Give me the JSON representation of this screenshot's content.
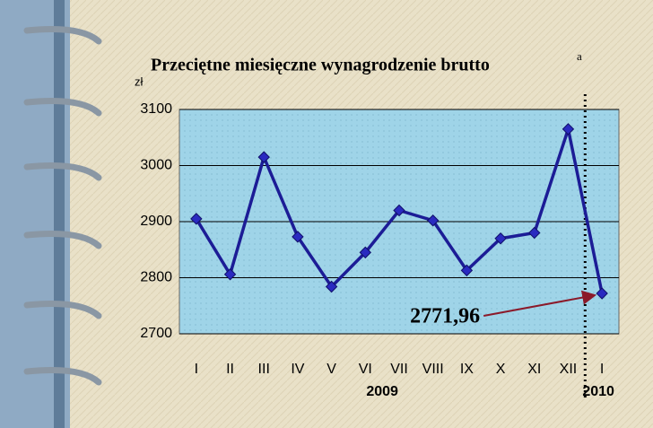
{
  "chart_data": {
    "type": "line",
    "title": "Przeciętne miesięczne wynagrodzenie brutto",
    "title_superscript": "a",
    "y_unit": "zł",
    "categories": [
      "I",
      "II",
      "III",
      "IV",
      "V",
      "VI",
      "VII",
      "VIII",
      "IX",
      "X",
      "XI",
      "XII",
      "I"
    ],
    "x_group_labels": [
      "2009",
      "2010"
    ],
    "series": [
      {
        "color": "#1c1c96",
        "values": [
          2905,
          2806,
          3015,
          2873,
          2784,
          2845,
          2920,
          2902,
          2813,
          2870,
          2880,
          3065,
          2771.96
        ],
        "value_labels": [
          null,
          null,
          null,
          null,
          null,
          null,
          null,
          null,
          null,
          null,
          null,
          null,
          "2771,96"
        ]
      }
    ],
    "ylim": [
      2700,
      3100
    ],
    "yticks": [
      2700,
      2800,
      2900,
      3000,
      3100
    ],
    "grid": true
  }
}
